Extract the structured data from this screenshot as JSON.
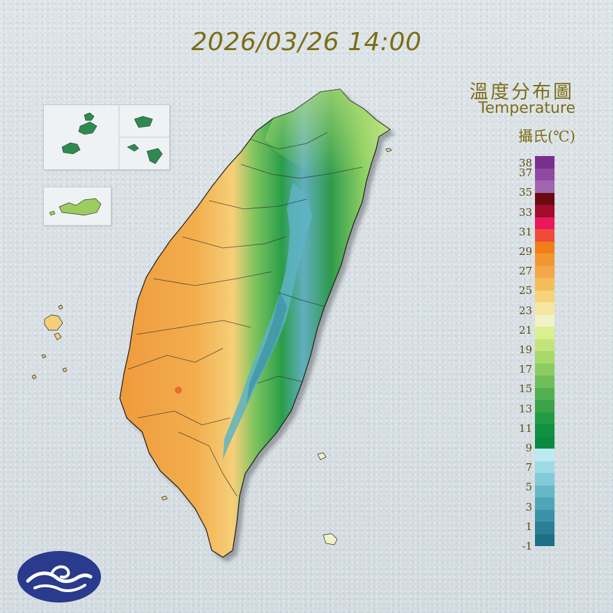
{
  "timestamp": "2026/03/26 14:00",
  "title_zh": "溫度分布圖",
  "title_en": "Temperature",
  "unit": "攝氏(℃)",
  "legend": {
    "labels": [
      "38",
      "37",
      "35",
      "33",
      "31",
      "29",
      "27",
      "25",
      "23",
      "21",
      "19",
      "17",
      "15",
      "13",
      "11",
      "9",
      "7",
      "5",
      "3",
      "1",
      "-1"
    ],
    "colors": [
      "#7a2f8f",
      "#8e4aa0",
      "#a066b0",
      "#6b0a12",
      "#a00d2a",
      "#e8185a",
      "#f04b3a",
      "#f07f1a",
      "#f29730",
      "#f2a748",
      "#f4bd5c",
      "#f6d37a",
      "#f7e6a0",
      "#f2f2c8",
      "#dbee92",
      "#c3e47a",
      "#a9d96a",
      "#8ccc62",
      "#6fbe5a",
      "#52b050",
      "#3ca348",
      "#229a44",
      "#129042",
      "#0a8a40",
      "#bdeaf0",
      "#9fdbe5",
      "#82cad8",
      "#66b8c8",
      "#4ea6b8",
      "#3a92a6",
      "#2a7f94",
      "#1e6f84"
    ],
    "label_min": -1,
    "label_max": 38
  },
  "accent_color": "#7d6d16",
  "logo": "cwa-cloud-logo-icon"
}
